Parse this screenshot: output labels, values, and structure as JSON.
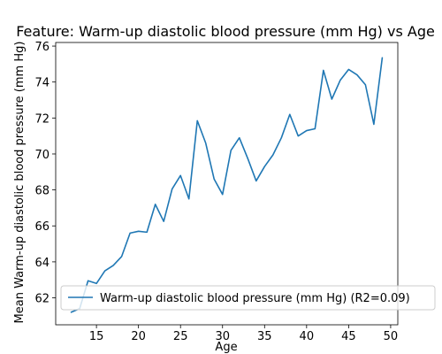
{
  "chart_data": {
    "type": "line",
    "title": "Feature: Warm-up diastolic blood pressure (mm Hg) vs Age",
    "xlabel": "Age",
    "ylabel": "Mean Warm-up diastolic blood pressure (mm Hg)",
    "xlim": [
      10.15,
      50.85
    ],
    "ylim": [
      60.5,
      76.2
    ],
    "xticks": [
      15,
      20,
      25,
      30,
      35,
      40,
      45,
      50
    ],
    "yticks": [
      62,
      64,
      66,
      68,
      70,
      72,
      74,
      76
    ],
    "grid": false,
    "legend_position": "lower right",
    "series": [
      {
        "name": "Warm-up diastolic blood pressure (mm Hg) (R2=0.09)",
        "color": "#1f77b4",
        "x": [
          12,
          13,
          14,
          15,
          16,
          17,
          18,
          19,
          20,
          21,
          22,
          23,
          24,
          25,
          26,
          27,
          28,
          29,
          30,
          31,
          32,
          33,
          34,
          35,
          36,
          37,
          38,
          39,
          40,
          41,
          42,
          43,
          44,
          45,
          46,
          47,
          48,
          49
        ],
        "y": [
          61.2,
          61.4,
          62.95,
          62.8,
          63.5,
          63.8,
          64.3,
          65.6,
          65.7,
          65.65,
          67.2,
          66.25,
          68.05,
          68.8,
          67.5,
          71.85,
          70.6,
          68.6,
          67.75,
          70.2,
          70.9,
          69.75,
          68.5,
          69.3,
          69.95,
          70.9,
          72.2,
          71.0,
          71.3,
          71.4,
          74.65,
          73.05,
          74.1,
          74.7,
          74.4,
          73.85,
          71.65,
          75.35
        ]
      }
    ]
  }
}
